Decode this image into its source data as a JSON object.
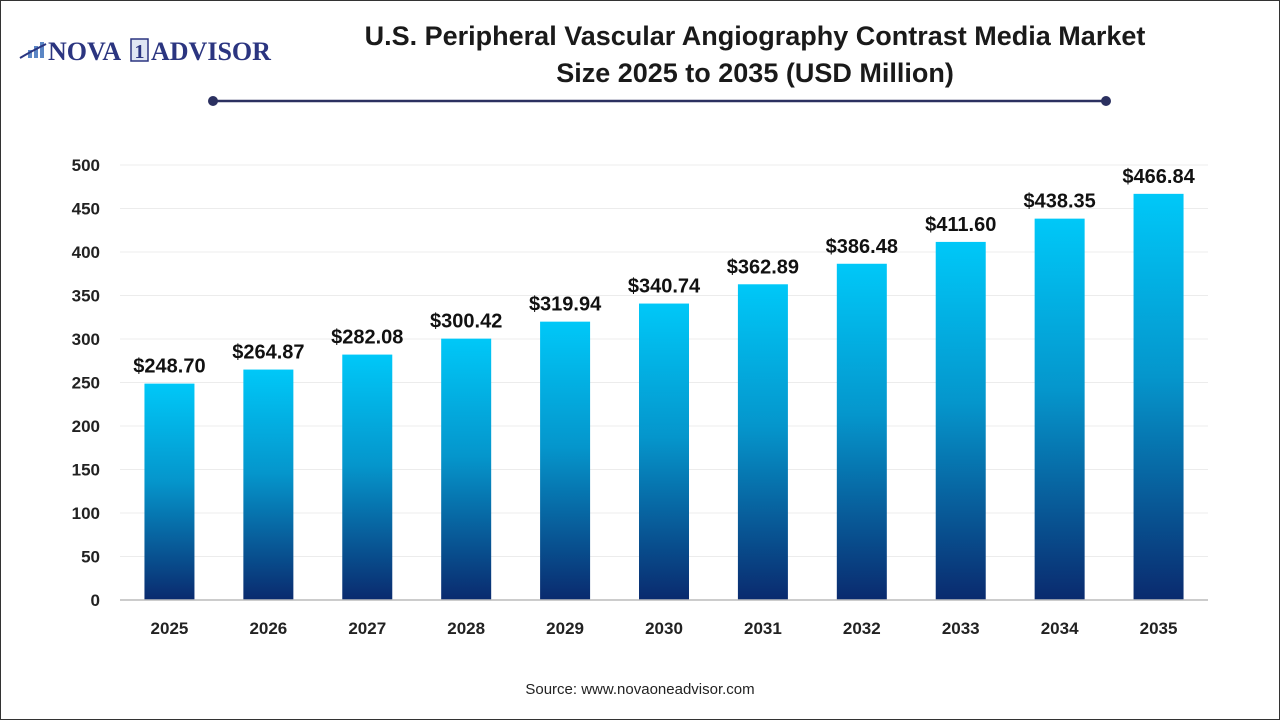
{
  "logo": {
    "text_left": "NOVA",
    "text_mark": "1",
    "text_right": "ADVISOR",
    "color": "#2b3580"
  },
  "title_line1": "U.S. Peripheral Vascular Angiography Contrast Media Market",
  "title_line2": "Size 2025 to 2035 (USD Million)",
  "source": "Source: www.novaoneadvisor.com",
  "chart_data": {
    "type": "bar",
    "title": "U.S. Peripheral Vascular Angiography Contrast Media Market Size 2025 to 2035 (USD Million)",
    "categories": [
      "2025",
      "2026",
      "2027",
      "2028",
      "2029",
      "2030",
      "2031",
      "2032",
      "2033",
      "2034",
      "2035"
    ],
    "values": [
      248.7,
      264.87,
      282.08,
      300.42,
      319.94,
      340.74,
      362.89,
      386.48,
      411.6,
      438.35,
      466.84
    ],
    "data_labels": [
      "$248.70",
      "$264.87",
      "$282.08",
      "$300.42",
      "$319.94",
      "$340.74",
      "$362.89",
      "$386.48",
      "$411.60",
      "$438.35",
      "$466.84"
    ],
    "ylim": [
      0,
      500
    ],
    "yticks": [
      0,
      50,
      100,
      150,
      200,
      250,
      300,
      350,
      400,
      450,
      500
    ],
    "grid": true,
    "bar_gradient": {
      "top": "#00c8f8",
      "bottom": "#0a2a6e"
    }
  }
}
